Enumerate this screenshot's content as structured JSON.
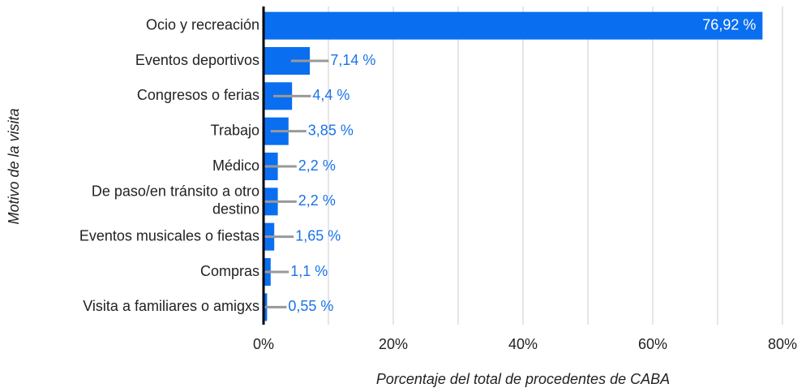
{
  "chart_data": {
    "type": "hbar",
    "categories": [
      "Ocio y recreación",
      "Eventos deportivos",
      "Congresos o ferias",
      "Trabajo",
      "Médico",
      "De paso/en tránsito a otro destino",
      "Eventos musicales o fiestas",
      "Compras",
      "Visita a familiares o amigxs"
    ],
    "values": [
      76.92,
      7.14,
      4.4,
      3.85,
      2.2,
      2.2,
      1.65,
      1.1,
      0.55
    ],
    "value_labels": [
      "76,92 %",
      "7,14 %",
      "4,4 %",
      "3,85 %",
      "2,2 %",
      "2,2 %",
      "1,65 %",
      "1,1 %",
      "0,55 %"
    ],
    "errors": [
      null,
      2.9,
      2.9,
      2.75,
      2.9,
      2.9,
      3.0,
      2.8,
      3.0
    ],
    "color": "#0a6ef0",
    "label_color": "#1a73e8",
    "error_color": "#999999",
    "xlim": [
      0,
      80
    ],
    "xticks": [
      {
        "value": 0,
        "label": "0%"
      },
      {
        "value": 20,
        "label": "20%"
      },
      {
        "value": 40,
        "label": "40%"
      },
      {
        "value": 60,
        "label": "60%"
      },
      {
        "value": 80,
        "label": "80%"
      }
    ],
    "minor_xticks": [
      10,
      30,
      50,
      70
    ],
    "grid": true,
    "xlabel": "Porcentaje del total de procedentes de CABA",
    "ylabel": "Motivo de la visita"
  }
}
